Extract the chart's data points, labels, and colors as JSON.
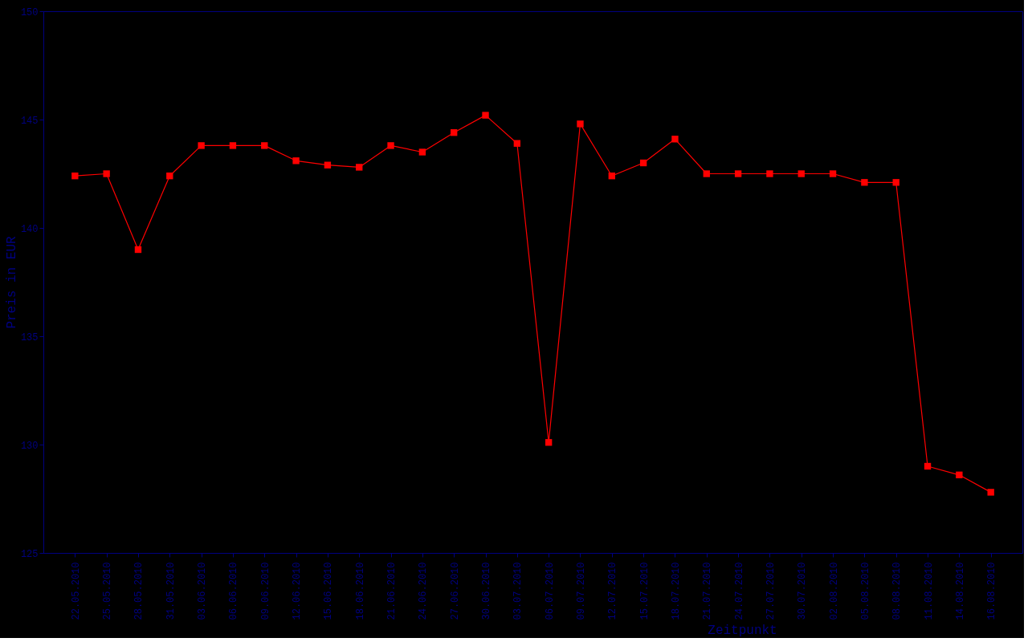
{
  "chart_data": {
    "type": "line",
    "xlabel": "Zeitpunkt",
    "ylabel": "Preis in EUR",
    "categories": [
      "22.05.2010",
      "25.05.2010",
      "28.05.2010",
      "31.05.2010",
      "03.06.2010",
      "06.06.2010",
      "09.06.2010",
      "12.06.2010",
      "15.06.2010",
      "18.06.2010",
      "21.06.2010",
      "24.06.2010",
      "27.06.2010",
      "30.06.2010",
      "03.07.2010",
      "06.07.2010",
      "09.07.2010",
      "12.07.2010",
      "15.07.2010",
      "18.07.2010",
      "21.07.2010",
      "24.07.2010",
      "27.07.2010",
      "30.07.2010",
      "02.08.2010",
      "05.08.2010",
      "08.08.2010",
      "11.08.2010",
      "14.08.2010",
      "16.08.2010"
    ],
    "series": [
      {
        "color": "#ff0000",
        "values": [
          142.4,
          142.5,
          139.0,
          142.4,
          143.8,
          143.8,
          143.8,
          143.1,
          142.9,
          142.8,
          143.8,
          143.5,
          144.4,
          145.2,
          143.9,
          130.1,
          144.8,
          142.4,
          143.0,
          144.1,
          142.5,
          142.5,
          142.5,
          142.5,
          142.5,
          142.1,
          142.1,
          129.0,
          128.6,
          127.8
        ]
      }
    ],
    "ylim": [
      125,
      150
    ],
    "yticks": [
      125,
      130,
      135,
      140,
      145,
      150
    ],
    "grid": false,
    "marker": "square",
    "line_style": "solid"
  }
}
